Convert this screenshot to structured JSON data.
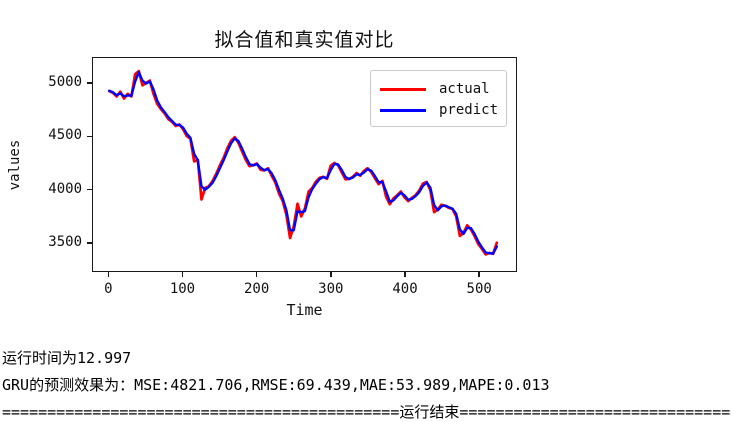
{
  "figure": {
    "title": "拟合值和真实值对比",
    "xlabel": "Time",
    "ylabel": "values"
  },
  "chart_data": {
    "type": "line",
    "title": "拟合值和真实值对比",
    "xlabel": "Time",
    "ylabel": "values",
    "xlim": [
      -22,
      551
    ],
    "ylim": [
      3228,
      5244
    ],
    "xticks": [
      0,
      100,
      200,
      300,
      400,
      500
    ],
    "yticks": [
      3500,
      4000,
      4500,
      5000
    ],
    "grid": false,
    "legend_position": "upper right",
    "x": [
      0,
      5,
      10,
      15,
      20,
      25,
      30,
      35,
      40,
      45,
      50,
      55,
      60,
      65,
      70,
      75,
      80,
      85,
      90,
      95,
      100,
      105,
      110,
      115,
      120,
      125,
      130,
      135,
      140,
      145,
      150,
      155,
      160,
      165,
      170,
      175,
      180,
      185,
      190,
      195,
      200,
      205,
      210,
      215,
      220,
      225,
      230,
      235,
      240,
      245,
      250,
      255,
      260,
      265,
      270,
      275,
      280,
      285,
      290,
      295,
      300,
      305,
      310,
      315,
      320,
      325,
      330,
      335,
      340,
      345,
      350,
      355,
      360,
      365,
      370,
      375,
      380,
      385,
      390,
      395,
      400,
      405,
      410,
      415,
      420,
      425,
      430,
      435,
      440,
      445,
      450,
      455,
      460,
      465,
      470,
      475,
      480,
      485,
      490,
      495,
      500,
      505,
      510,
      515,
      520,
      525
    ],
    "series": [
      {
        "name": "actual",
        "color": "#ff0000",
        "values": [
          4930,
          4915,
          4880,
          4925,
          4860,
          4905,
          4880,
          5090,
          5120,
          4985,
          5010,
          5030,
          4905,
          4810,
          4760,
          4720,
          4665,
          4640,
          4600,
          4615,
          4570,
          4505,
          4480,
          4265,
          4280,
          3905,
          4015,
          4030,
          4080,
          4150,
          4230,
          4300,
          4390,
          4460,
          4495,
          4440,
          4360,
          4280,
          4220,
          4230,
          4245,
          4185,
          4180,
          4200,
          4130,
          4065,
          3960,
          3890,
          3760,
          3540,
          3650,
          3865,
          3745,
          3820,
          3980,
          4015,
          4075,
          4110,
          4120,
          4100,
          4225,
          4250,
          4230,
          4160,
          4095,
          4100,
          4120,
          4155,
          4130,
          4175,
          4200,
          4165,
          4105,
          4050,
          4080,
          3930,
          3860,
          3915,
          3945,
          3980,
          3925,
          3890,
          3920,
          3945,
          3990,
          4055,
          4070,
          3990,
          3785,
          3810,
          3855,
          3845,
          3825,
          3815,
          3745,
          3560,
          3590,
          3660,
          3620,
          3555,
          3480,
          3435,
          3385,
          3400,
          3390,
          3495
        ]
      },
      {
        "name": "predict",
        "color": "#0000ff",
        "values": [
          4935,
          4920,
          4892,
          4910,
          4882,
          4890,
          4888,
          5020,
          5110,
          5030,
          5002,
          5023,
          4947,
          4842,
          4777,
          4733,
          4683,
          4648,
          4613,
          4610,
          4585,
          4527,
          4488,
          4337,
          4275,
          4030,
          3997,
          4025,
          4063,
          4127,
          4203,
          4277,
          4360,
          4437,
          4483,
          4458,
          4387,
          4307,
          4240,
          4227,
          4240,
          4205,
          4182,
          4193,
          4153,
          4087,
          3995,
          3913,
          3803,
          3613,
          3613,
          3793,
          3785,
          3795,
          3927,
          4003,
          4055,
          4098,
          4117,
          4107,
          4183,
          4242,
          4237,
          4183,
          4117,
          4098,
          4113,
          4143,
          4138,
          4160,
          4192,
          4177,
          4125,
          4068,
          4070,
          3980,
          3883,
          3897,
          3935,
          3968,
          3943,
          3902,
          3910,
          3937,
          3975,
          4033,
          4065,
          4017,
          3853,
          3802,
          3840,
          3848,
          3832,
          3818,
          3768,
          3622,
          3580,
          3637,
          3633,
          3577,
          3505,
          3450,
          3402,
          3395,
          3393,
          3460
        ]
      }
    ]
  },
  "console": {
    "line1": "运行时间为12.997",
    "line2": "GRU的预测效果为：MSE:4821.706,RMSE:69.439,MAE:53.989,MAPE:0.013",
    "line3": "============================================运行结束========================================"
  }
}
